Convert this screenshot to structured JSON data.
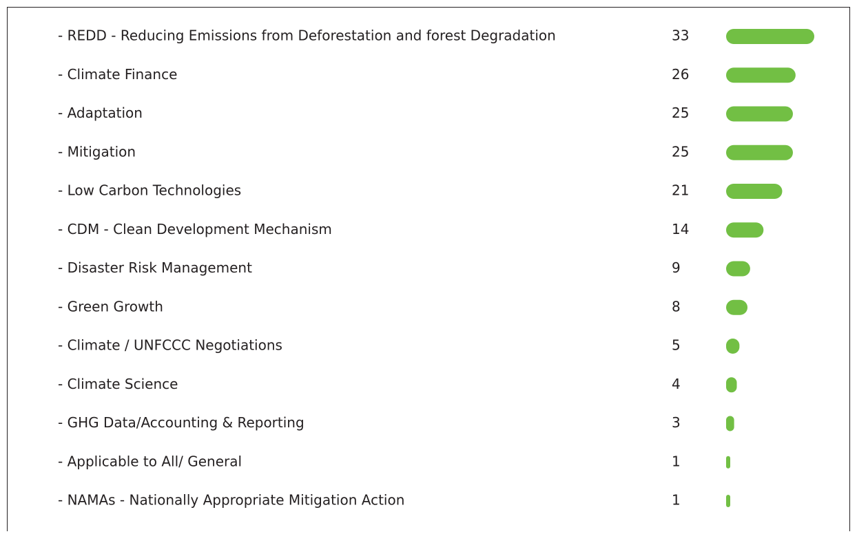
{
  "chart_data": {
    "type": "bar",
    "orientation": "horizontal",
    "color": "#72bf44",
    "categories": [
      "- REDD - Reducing Emissions from Deforestation and forest Degradation",
      "- Climate Finance",
      "- Adaptation",
      "- Mitigation",
      "- Low Carbon Technologies",
      "- CDM - Clean Development Mechanism",
      "- Disaster Risk Management",
      "- Green Growth",
      "- Climate / UNFCCC Negotiations",
      "- Climate Science",
      "- GHG Data/Accounting & Reporting",
      "- Applicable to All/ General",
      "- NAMAs - Nationally Appropriate Mitigation Action"
    ],
    "values": [
      33,
      26,
      25,
      25,
      21,
      14,
      9,
      8,
      5,
      4,
      3,
      1,
      1
    ]
  }
}
